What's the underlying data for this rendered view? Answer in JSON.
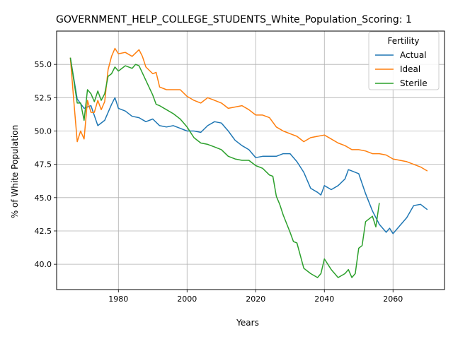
{
  "chart_data": {
    "type": "line",
    "title": "GOVERNMENT_HELP_COLLEGE_STUDENTS_White_Population_Scoring: 1",
    "xlabel": "Years",
    "ylabel": "% of White Population",
    "xlim": [
      1962,
      2075
    ],
    "ylim": [
      38.1,
      57.5
    ],
    "x_ticks": [
      1980,
      2000,
      2020,
      2040,
      2060
    ],
    "y_ticks": [
      40.0,
      42.5,
      45.0,
      47.5,
      50.0,
      52.5,
      55.0
    ],
    "x_tick_labels": [
      "1980",
      "2000",
      "2020",
      "2040",
      "2060"
    ],
    "y_tick_labels": [
      "40.0",
      "42.5",
      "45.0",
      "47.5",
      "50.0",
      "52.5",
      "55.0"
    ],
    "grid": true,
    "legend": {
      "title": "Fertility",
      "placement": "top-right"
    },
    "series": [
      {
        "name": "Actual",
        "color": "#1f77b4",
        "x": [
          1966,
          1968,
          1970,
          1972,
          1974,
          1976,
          1978,
          1979,
          1980,
          1982,
          1984,
          1986,
          1988,
          1990,
          1992,
          1994,
          1996,
          1998,
          2000,
          2002,
          2004,
          2006,
          2008,
          2010,
          2012,
          2014,
          2016,
          2018,
          2020,
          2022,
          2024,
          2026,
          2028,
          2030,
          2032,
          2034,
          2036,
          2038,
          2039,
          2040,
          2042,
          2044,
          2046,
          2047,
          2048,
          2050,
          2052,
          2054,
          2056,
          2058,
          2059,
          2060,
          2062,
          2064,
          2066,
          2068,
          2070
        ],
        "values": [
          55.5,
          52.4,
          51.7,
          51.9,
          50.4,
          50.8,
          52.0,
          52.5,
          51.7,
          51.5,
          51.1,
          51.0,
          50.7,
          50.9,
          50.4,
          50.3,
          50.4,
          50.2,
          50.0,
          50.0,
          49.9,
          50.4,
          50.7,
          50.6,
          50.0,
          49.3,
          48.9,
          48.6,
          48.0,
          48.1,
          48.1,
          48.1,
          48.3,
          48.3,
          47.7,
          46.9,
          45.7,
          45.4,
          45.2,
          45.9,
          45.6,
          45.9,
          46.4,
          47.1,
          47.0,
          46.8,
          45.3,
          44.0,
          43.0,
          42.4,
          42.7,
          42.3,
          42.9,
          43.5,
          44.4,
          44.5,
          44.1
        ]
      },
      {
        "name": "Ideal",
        "color": "#ff7f0e",
        "x": [
          1966,
          1967,
          1968,
          1969,
          1970,
          1971,
          1972,
          1973,
          1974,
          1975,
          1976,
          1977,
          1978,
          1979,
          1980,
          1982,
          1984,
          1986,
          1987,
          1988,
          1990,
          1991,
          1992,
          1994,
          1996,
          1998,
          2000,
          2002,
          2004,
          2006,
          2008,
          2010,
          2012,
          2014,
          2016,
          2018,
          2020,
          2022,
          2024,
          2026,
          2028,
          2030,
          2032,
          2034,
          2036,
          2038,
          2040,
          2042,
          2044,
          2046,
          2048,
          2050,
          2052,
          2054,
          2056,
          2058,
          2060,
          2062,
          2064,
          2066,
          2068,
          2070
        ],
        "values": [
          55.5,
          52.3,
          49.2,
          50.0,
          49.4,
          52.3,
          51.4,
          51.4,
          52.3,
          51.6,
          52.2,
          54.6,
          55.6,
          56.2,
          55.8,
          55.9,
          55.6,
          56.1,
          55.6,
          54.8,
          54.3,
          54.4,
          53.3,
          53.1,
          53.1,
          53.1,
          52.6,
          52.3,
          52.1,
          52.5,
          52.3,
          52.1,
          51.7,
          51.8,
          51.9,
          51.6,
          51.2,
          51.2,
          51.0,
          50.3,
          50.0,
          49.8,
          49.6,
          49.2,
          49.5,
          49.6,
          49.7,
          49.4,
          49.1,
          48.9,
          48.6,
          48.6,
          48.5,
          48.3,
          48.3,
          48.2,
          47.9,
          47.8,
          47.7,
          47.5,
          47.3,
          47.0
        ]
      },
      {
        "name": "Sterile",
        "color": "#2ca02c",
        "x": [
          1966,
          1968,
          1969,
          1970,
          1971,
          1972,
          1973,
          1974,
          1975,
          1976,
          1977,
          1978,
          1979,
          1980,
          1982,
          1984,
          1985,
          1986,
          1988,
          1990,
          1991,
          1992,
          1994,
          1996,
          1998,
          2000,
          2002,
          2004,
          2006,
          2008,
          2010,
          2012,
          2014,
          2016,
          2018,
          2020,
          2022,
          2024,
          2025,
          2026,
          2027,
          2028,
          2030,
          2031,
          2032,
          2034,
          2036,
          2038,
          2039,
          2040,
          2042,
          2044,
          2046,
          2047,
          2048,
          2049,
          2050,
          2051,
          2052,
          2054,
          2055,
          2056
        ],
        "values": [
          55.5,
          52.1,
          52.1,
          50.8,
          53.1,
          52.8,
          52.2,
          53.0,
          52.3,
          52.8,
          54.1,
          54.3,
          54.8,
          54.5,
          54.9,
          54.7,
          55.0,
          54.9,
          53.8,
          52.7,
          52.0,
          51.9,
          51.6,
          51.3,
          50.9,
          50.3,
          49.5,
          49.1,
          49.0,
          48.8,
          48.6,
          48.1,
          47.9,
          47.8,
          47.8,
          47.4,
          47.2,
          46.7,
          46.6,
          45.1,
          44.5,
          43.7,
          42.4,
          41.7,
          41.6,
          39.7,
          39.3,
          39.0,
          39.3,
          40.4,
          39.6,
          39.0,
          39.3,
          39.6,
          39.0,
          39.3,
          41.2,
          41.4,
          43.2,
          43.6,
          42.8,
          44.6
        ]
      }
    ]
  }
}
